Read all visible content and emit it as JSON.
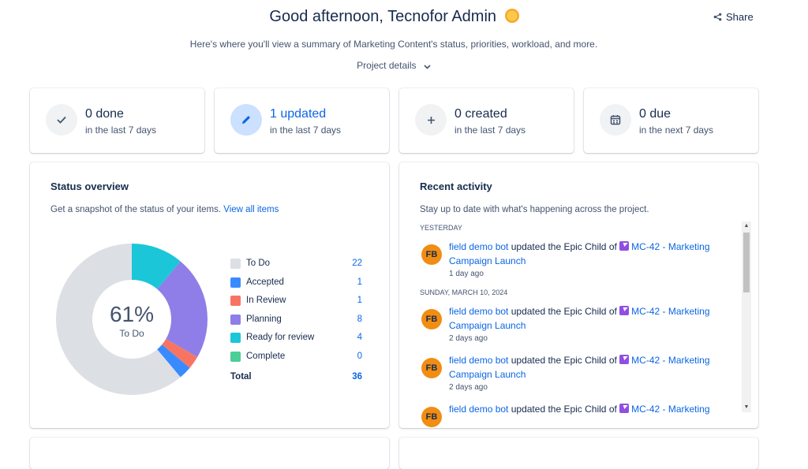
{
  "header": {
    "title": "Good afternoon, Tecnofor Admin",
    "share_label": "Share",
    "subtitle": "Here's where you'll view a summary of Marketing Content's status, priorities, workload, and more.",
    "project_details_label": "Project details"
  },
  "stats": [
    {
      "main": "0 done",
      "sub": "in the last 7 days",
      "icon": "check-icon"
    },
    {
      "main": "1 updated",
      "sub": "in the last 7 days",
      "icon": "pencil-icon"
    },
    {
      "main": "0 created",
      "sub": "in the last 7 days",
      "icon": "plus-icon"
    },
    {
      "main": "0 due",
      "sub": "in the next 7 days",
      "icon": "calendar-icon"
    }
  ],
  "status_overview": {
    "title": "Status overview",
    "description": "Get a snapshot of the status of your items.",
    "view_all_link": "View all items",
    "center_percent": "61%",
    "center_label": "To Do",
    "total_label": "Total",
    "total_value": "36"
  },
  "chart_data": {
    "type": "pie",
    "categories": [
      "To Do",
      "Accepted",
      "In Review",
      "Planning",
      "Ready for review",
      "Complete"
    ],
    "values": [
      22,
      1,
      1,
      8,
      4,
      0
    ],
    "colors": [
      "#dcdfe4",
      "#388bff",
      "#f87462",
      "#8f7ee7",
      "#1cc6d9",
      "#4bce97"
    ],
    "total": 36
  },
  "recent_activity": {
    "title": "Recent activity",
    "description": "Stay up to date with what's happening across the project.",
    "groups": [
      {
        "heading": "YESTERDAY",
        "items": [
          {
            "initials": "FB",
            "actor": "field demo bot",
            "action": "updated the Epic Child of",
            "issue": "MC-42 - Marketing Campaign Launch",
            "time": "1 day ago"
          }
        ]
      },
      {
        "heading": "SUNDAY, MARCH 10, 2024",
        "items": [
          {
            "initials": "FB",
            "actor": "field demo bot",
            "action": "updated the Epic Child of",
            "issue": "MC-42 - Marketing Campaign Launch",
            "time": "2 days ago"
          },
          {
            "initials": "FB",
            "actor": "field demo bot",
            "action": "updated the Epic Child of",
            "issue": "MC-42 - Marketing Campaign Launch",
            "time": "2 days ago"
          },
          {
            "initials": "FB",
            "actor": "field demo bot",
            "action": "updated the Epic Child of",
            "issue": "MC-42 - Marketing",
            "time": ""
          }
        ]
      }
    ]
  }
}
